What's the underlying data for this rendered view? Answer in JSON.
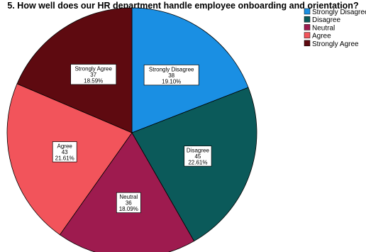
{
  "chart_data": {
    "type": "pie",
    "title": "5. How well does our HR department handle employee onboarding and orientation?",
    "slices": [
      {
        "name": "Strongly Disagree",
        "count": "38",
        "percent": "19.10%",
        "value": 19.1,
        "color": "#1A8FE3"
      },
      {
        "name": "Disagree",
        "count": "45",
        "percent": "22.61%",
        "value": 22.61,
        "color": "#0B5A5A"
      },
      {
        "name": "Neutral",
        "count": "36",
        "percent": "18.09%",
        "value": 18.09,
        "color": "#9E1B4F"
      },
      {
        "name": "Agree",
        "count": "43",
        "percent": "21.61%",
        "value": 21.61,
        "color": "#F2545B"
      },
      {
        "name": "Strongly Agree",
        "count": "37",
        "percent": "18.59%",
        "value": 18.59,
        "color": "#5E0A10"
      }
    ],
    "start_angle_deg": 0,
    "direction": "clockwise",
    "legend_position": "top-right"
  }
}
